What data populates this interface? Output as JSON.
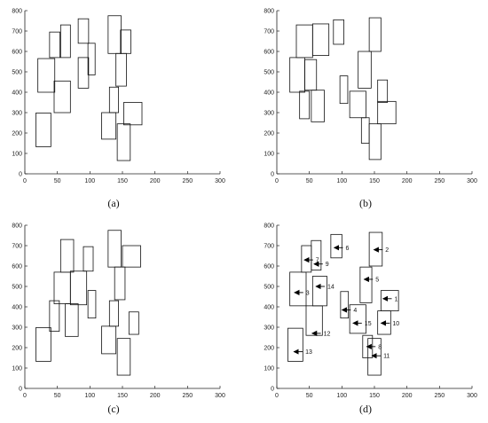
{
  "chart_data": [
    {
      "type": "rectangles",
      "caption": "(a)",
      "xlim": [
        0,
        300
      ],
      "ylim": [
        0,
        800
      ],
      "x_ticks": [
        0,
        50,
        100,
        150,
        200,
        250,
        300
      ],
      "y_ticks": [
        0,
        100,
        200,
        300,
        400,
        500,
        600,
        700,
        800
      ],
      "grid": false,
      "rects": [
        {
          "x": 17,
          "y": 133,
          "w": 23,
          "h": 165
        },
        {
          "x": 38,
          "y": 570,
          "w": 16,
          "h": 125
        },
        {
          "x": 55,
          "y": 570,
          "w": 15,
          "h": 160
        },
        {
          "x": 20,
          "y": 400,
          "w": 26,
          "h": 165
        },
        {
          "x": 45,
          "y": 300,
          "w": 25,
          "h": 155
        },
        {
          "x": 82,
          "y": 640,
          "w": 16,
          "h": 120
        },
        {
          "x": 97,
          "y": 485,
          "w": 11,
          "h": 155
        },
        {
          "x": 82,
          "y": 420,
          "w": 16,
          "h": 150
        },
        {
          "x": 128,
          "y": 590,
          "w": 20,
          "h": 185
        },
        {
          "x": 147,
          "y": 590,
          "w": 16,
          "h": 115
        },
        {
          "x": 140,
          "y": 430,
          "w": 16,
          "h": 160
        },
        {
          "x": 130,
          "y": 300,
          "w": 14,
          "h": 125
        },
        {
          "x": 118,
          "y": 170,
          "w": 22,
          "h": 130
        },
        {
          "x": 152,
          "y": 240,
          "w": 28,
          "h": 110
        },
        {
          "x": 142,
          "y": 65,
          "w": 20,
          "h": 180
        }
      ]
    },
    {
      "type": "rectangles",
      "caption": "(b)",
      "xlim": [
        0,
        300
      ],
      "ylim": [
        0,
        800
      ],
      "x_ticks": [
        0,
        50,
        100,
        150,
        200,
        250,
        300
      ],
      "y_ticks": [
        0,
        100,
        200,
        300,
        400,
        500,
        600,
        700,
        800
      ],
      "grid": false,
      "rects": [
        {
          "x": 30,
          "y": 570,
          "w": 25,
          "h": 160
        },
        {
          "x": 55,
          "y": 580,
          "w": 25,
          "h": 155
        },
        {
          "x": 20,
          "y": 400,
          "w": 23,
          "h": 170
        },
        {
          "x": 43,
          "y": 410,
          "w": 18,
          "h": 150
        },
        {
          "x": 35,
          "y": 270,
          "w": 15,
          "h": 135
        },
        {
          "x": 53,
          "y": 255,
          "w": 20,
          "h": 155
        },
        {
          "x": 87,
          "y": 635,
          "w": 16,
          "h": 120
        },
        {
          "x": 97,
          "y": 345,
          "w": 12,
          "h": 135
        },
        {
          "x": 142,
          "y": 600,
          "w": 18,
          "h": 165
        },
        {
          "x": 125,
          "y": 420,
          "w": 20,
          "h": 180
        },
        {
          "x": 155,
          "y": 350,
          "w": 15,
          "h": 110
        },
        {
          "x": 112,
          "y": 275,
          "w": 25,
          "h": 130
        },
        {
          "x": 155,
          "y": 245,
          "w": 28,
          "h": 110
        },
        {
          "x": 130,
          "y": 150,
          "w": 12,
          "h": 125
        },
        {
          "x": 142,
          "y": 70,
          "w": 18,
          "h": 175
        }
      ]
    },
    {
      "type": "rectangles",
      "caption": "(c)",
      "xlim": [
        0,
        300
      ],
      "ylim": [
        0,
        800
      ],
      "x_ticks": [
        0,
        50,
        100,
        150,
        200,
        250,
        300
      ],
      "y_ticks": [
        0,
        100,
        200,
        300,
        400,
        500,
        600,
        700,
        800
      ],
      "grid": false,
      "rects": [
        {
          "x": 17,
          "y": 133,
          "w": 23,
          "h": 165
        },
        {
          "x": 38,
          "y": 280,
          "w": 15,
          "h": 150
        },
        {
          "x": 55,
          "y": 570,
          "w": 20,
          "h": 160
        },
        {
          "x": 45,
          "y": 415,
          "w": 25,
          "h": 155
        },
        {
          "x": 70,
          "y": 410,
          "w": 25,
          "h": 165
        },
        {
          "x": 62,
          "y": 255,
          "w": 20,
          "h": 160
        },
        {
          "x": 90,
          "y": 575,
          "w": 15,
          "h": 120
        },
        {
          "x": 97,
          "y": 345,
          "w": 12,
          "h": 135
        },
        {
          "x": 128,
          "y": 595,
          "w": 20,
          "h": 180
        },
        {
          "x": 150,
          "y": 595,
          "w": 28,
          "h": 105
        },
        {
          "x": 138,
          "y": 435,
          "w": 16,
          "h": 160
        },
        {
          "x": 130,
          "y": 305,
          "w": 14,
          "h": 125
        },
        {
          "x": 118,
          "y": 170,
          "w": 22,
          "h": 135
        },
        {
          "x": 160,
          "y": 265,
          "w": 15,
          "h": 110
        },
        {
          "x": 142,
          "y": 65,
          "w": 20,
          "h": 180
        }
      ]
    },
    {
      "type": "rectangles",
      "caption": "(d)",
      "xlim": [
        0,
        300
      ],
      "ylim": [
        0,
        800
      ],
      "x_ticks": [
        0,
        50,
        100,
        150,
        200,
        250,
        300
      ],
      "y_ticks": [
        0,
        100,
        200,
        300,
        400,
        500,
        600,
        700,
        800
      ],
      "grid": false,
      "rects": [
        {
          "x": 17,
          "y": 133,
          "w": 23,
          "h": 162
        },
        {
          "x": 38,
          "y": 570,
          "w": 15,
          "h": 130
        },
        {
          "x": 20,
          "y": 405,
          "w": 25,
          "h": 165
        },
        {
          "x": 45,
          "y": 260,
          "w": 25,
          "h": 145
        },
        {
          "x": 53,
          "y": 580,
          "w": 15,
          "h": 145
        },
        {
          "x": 55,
          "y": 405,
          "w": 22,
          "h": 145
        },
        {
          "x": 83,
          "y": 640,
          "w": 17,
          "h": 115
        },
        {
          "x": 98,
          "y": 345,
          "w": 12,
          "h": 130
        },
        {
          "x": 142,
          "y": 600,
          "w": 20,
          "h": 165
        },
        {
          "x": 128,
          "y": 420,
          "w": 18,
          "h": 175
        },
        {
          "x": 160,
          "y": 380,
          "w": 27,
          "h": 100
        },
        {
          "x": 112,
          "y": 270,
          "w": 25,
          "h": 140
        },
        {
          "x": 155,
          "y": 265,
          "w": 20,
          "h": 115
        },
        {
          "x": 132,
          "y": 150,
          "w": 15,
          "h": 110
        },
        {
          "x": 140,
          "y": 65,
          "w": 20,
          "h": 180
        }
      ],
      "annotations": [
        {
          "label": "1",
          "tip_x": 163,
          "tip_y": 440
        },
        {
          "label": "2",
          "tip_x": 149,
          "tip_y": 680
        },
        {
          "label": "3",
          "tip_x": 27,
          "tip_y": 470
        },
        {
          "label": "4",
          "tip_x": 100,
          "tip_y": 385
        },
        {
          "label": "5",
          "tip_x": 134,
          "tip_y": 535
        },
        {
          "label": "6",
          "tip_x": 88,
          "tip_y": 690
        },
        {
          "label": "7",
          "tip_x": 42,
          "tip_y": 630
        },
        {
          "label": "8",
          "tip_x": 138,
          "tip_y": 205
        },
        {
          "label": "9",
          "tip_x": 57,
          "tip_y": 610
        },
        {
          "label": "10",
          "tip_x": 160,
          "tip_y": 320
        },
        {
          "label": "11",
          "tip_x": 146,
          "tip_y": 160
        },
        {
          "label": "12",
          "tip_x": 54,
          "tip_y": 270
        },
        {
          "label": "13",
          "tip_x": 26,
          "tip_y": 180
        },
        {
          "label": "14",
          "tip_x": 60,
          "tip_y": 500
        },
        {
          "label": "15",
          "tip_x": 117,
          "tip_y": 320
        }
      ]
    }
  ]
}
